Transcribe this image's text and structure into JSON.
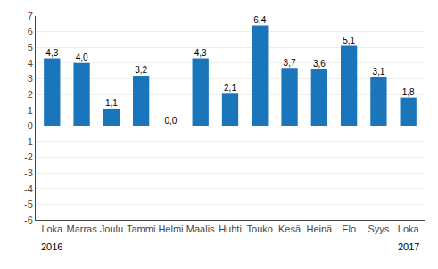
{
  "chart_data": {
    "type": "bar",
    "categories": [
      "Loka",
      "Marras",
      "Joulu",
      "Tammi",
      "Helmi",
      "Maalis",
      "Huhti",
      "Touko",
      "Kesä",
      "Heinä",
      "Elo",
      "Syys",
      "Loka"
    ],
    "values": [
      4.3,
      4.0,
      1.1,
      3.2,
      0.0,
      4.3,
      2.1,
      6.4,
      3.7,
      3.6,
      5.1,
      3.1,
      1.8
    ],
    "value_labels": [
      "4,3",
      "4,0",
      "1,1",
      "3,2",
      "0,0",
      "4,3",
      "2,1",
      "6,4",
      "3,7",
      "3,6",
      "5,1",
      "3,1",
      "1,8"
    ],
    "data_labels": true,
    "color": "#1b75bb",
    "ylim": [
      -6,
      7
    ],
    "yticks": [
      -6,
      -5,
      -4,
      -3,
      -2,
      -1,
      0,
      1,
      2,
      3,
      4,
      5,
      6,
      7
    ],
    "grid": true,
    "annotations": [
      {
        "text": "2016",
        "x": 0
      },
      {
        "text": "2017",
        "x": 12
      }
    ]
  }
}
